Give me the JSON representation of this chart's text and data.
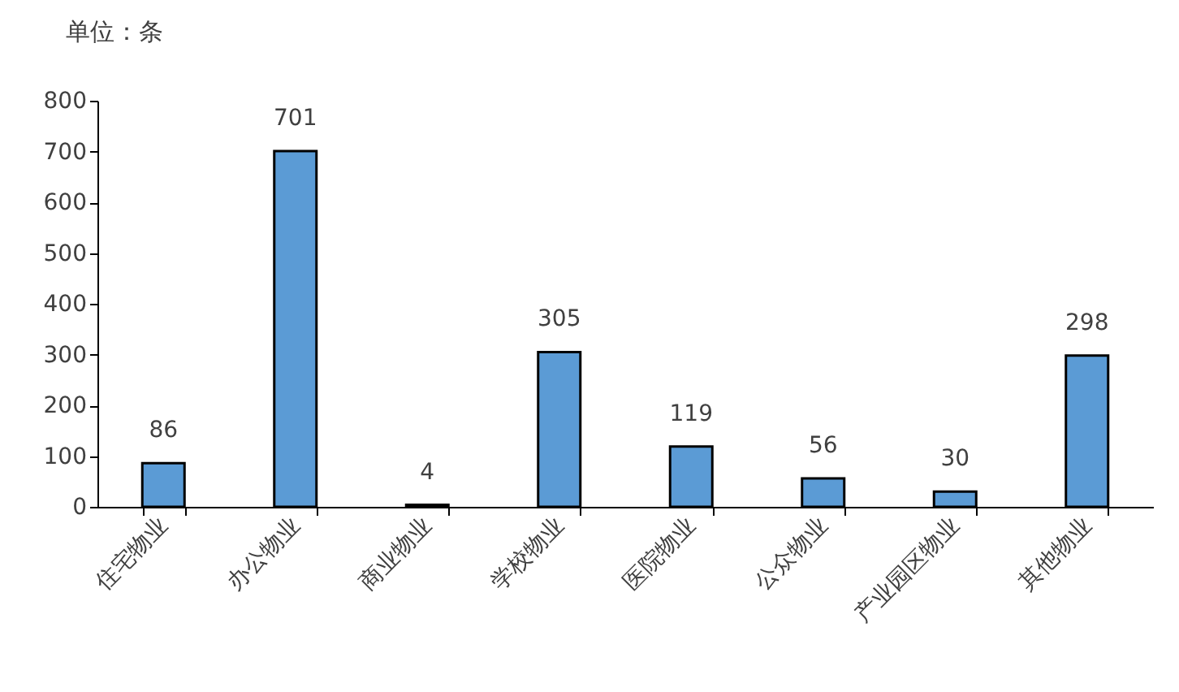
{
  "chart_data": {
    "type": "bar",
    "ylabel": "单位：条",
    "categories": [
      "住宅物业",
      "办公物业",
      "商业物业",
      "学校物业",
      "医院物业",
      "公众物业",
      "产业园区物业",
      "其他物业"
    ],
    "values": [
      86,
      701,
      4,
      305,
      119,
      56,
      30,
      298
    ],
    "color": "#5b9bd5",
    "ylim": [
      0,
      800
    ],
    "yticks": [
      0,
      100,
      200,
      300,
      400,
      500,
      600,
      700,
      800
    ],
    "data_labels": true
  }
}
